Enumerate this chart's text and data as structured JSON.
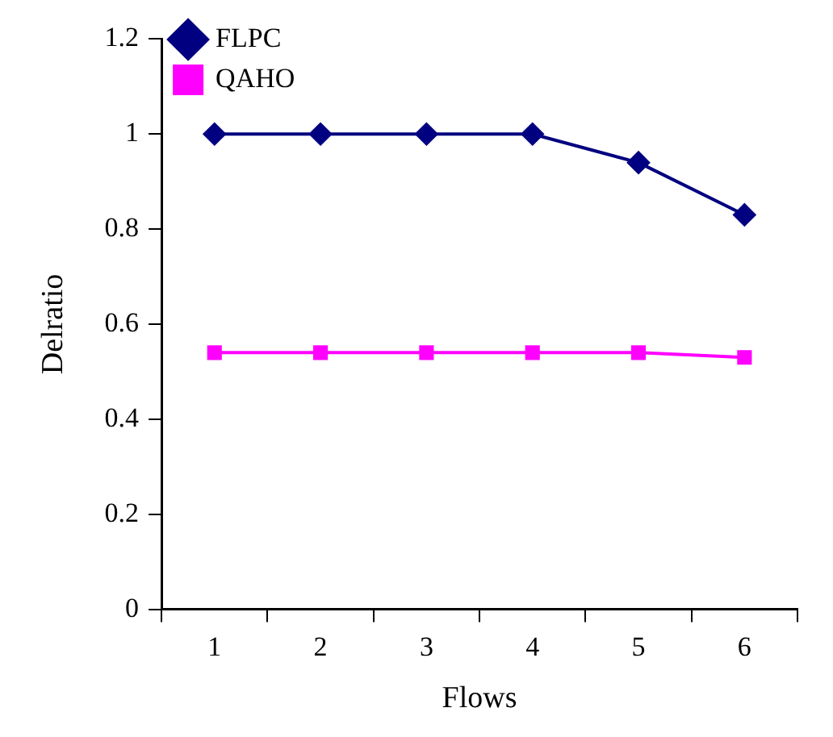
{
  "chart_data": {
    "type": "line",
    "xlabel": "Flows",
    "ylabel": "Delratio",
    "categories": [
      "1",
      "2",
      "3",
      "4",
      "5",
      "6"
    ],
    "series": [
      {
        "name": "FLPC",
        "color": "#000080",
        "marker": "diamond",
        "values": [
          1,
          1,
          1,
          1,
          0.94,
          0.83
        ]
      },
      {
        "name": "QAHO",
        "color": "#ff00ff",
        "marker": "square",
        "values": [
          0.54,
          0.54,
          0.54,
          0.54,
          0.54,
          0.53
        ]
      }
    ],
    "ylim": [
      0,
      1.2
    ],
    "yticks": [
      0,
      0.2,
      0.4,
      0.6,
      0.8,
      1,
      1.2
    ],
    "grid": false,
    "legend": "top left",
    "line_style": "solid"
  }
}
